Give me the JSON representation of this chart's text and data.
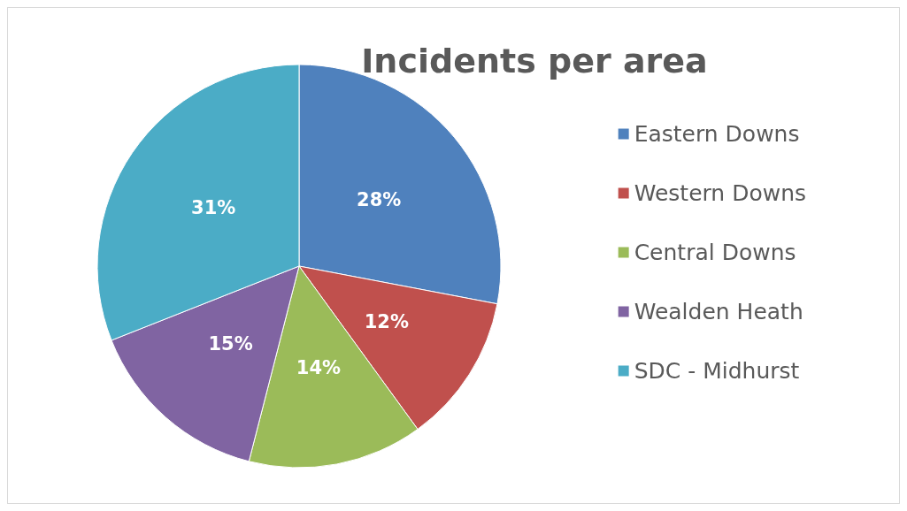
{
  "chart_data": {
    "type": "pie",
    "title": "Incidents per area",
    "categories": [
      "Eastern Downs",
      "Western Downs",
      "Central Downs",
      "Wealden Heath",
      "SDC - Midhurst"
    ],
    "values": [
      28,
      12,
      14,
      15,
      31
    ],
    "colors": [
      "#4f81bd",
      "#c0504d",
      "#9bbb59",
      "#8064a2",
      "#4bacc6"
    ],
    "value_labels": [
      "28%",
      "12%",
      "14%",
      "15%",
      "31%"
    ],
    "legend": "right"
  }
}
